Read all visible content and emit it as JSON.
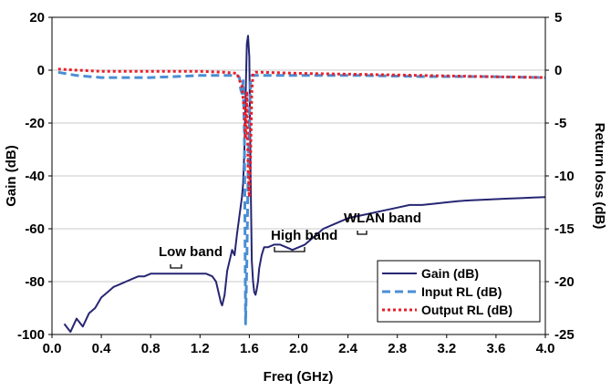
{
  "chart_data": {
    "type": "line",
    "xlabel": "Freq (GHz)",
    "ylabel": "Gain (dB)",
    "y2label": "Return loss (dB)",
    "xlim": [
      0.0,
      4.0
    ],
    "ylim": [
      -100,
      20
    ],
    "y2lim": [
      -25,
      5
    ],
    "x_ticks": [
      "0.0",
      "0.4",
      "0.8",
      "1.2",
      "1.6",
      "2.0",
      "2.4",
      "2.8",
      "3.2",
      "3.6",
      "4.0"
    ],
    "y_ticks": [
      "20",
      "0",
      "-20",
      "-40",
      "-60",
      "-80",
      "-100"
    ],
    "y2_ticks": [
      "5",
      "0",
      "-5",
      "-10",
      "-15",
      "-20",
      "-25"
    ],
    "grid": true,
    "legend_position": "bottom-right",
    "series": [
      {
        "name": "Gain (dB)",
        "axis": "left",
        "color": "#262673",
        "style": "solid",
        "x": [
          0.1,
          0.15,
          0.2,
          0.25,
          0.3,
          0.35,
          0.4,
          0.45,
          0.5,
          0.55,
          0.6,
          0.65,
          0.7,
          0.75,
          0.8,
          0.85,
          0.9,
          0.95,
          1.0,
          1.05,
          1.1,
          1.15,
          1.2,
          1.25,
          1.3,
          1.33,
          1.35,
          1.37,
          1.38,
          1.4,
          1.42,
          1.44,
          1.46,
          1.48,
          1.5,
          1.52,
          1.54,
          1.55,
          1.56,
          1.57,
          1.58,
          1.59,
          1.6,
          1.61,
          1.62,
          1.63,
          1.64,
          1.65,
          1.66,
          1.67,
          1.68,
          1.7,
          1.72,
          1.75,
          1.8,
          1.85,
          1.9,
          1.95,
          2.0,
          2.05,
          2.1,
          2.15,
          2.2,
          2.3,
          2.4,
          2.5,
          2.6,
          2.7,
          2.8,
          2.9,
          3.0,
          3.1,
          3.2,
          3.3,
          3.4,
          3.5,
          3.6,
          3.7,
          3.8,
          3.9,
          4.0
        ],
        "values": [
          -96,
          -99,
          -94,
          -97,
          -92,
          -90,
          -86,
          -84,
          -82,
          -81,
          -80,
          -79,
          -78,
          -78,
          -77,
          -77,
          -77,
          -77,
          -77,
          -77,
          -77,
          -77,
          -77,
          -77,
          -78,
          -80,
          -84,
          -88,
          -89,
          -85,
          -76,
          -72,
          -68,
          -70,
          -62,
          -55,
          -48,
          -43,
          -30,
          -10,
          10,
          13,
          5,
          -40,
          -72,
          -80,
          -84,
          -85,
          -83,
          -80,
          -75,
          -70,
          -67,
          -67,
          -66,
          -66,
          -67,
          -68,
          -67,
          -66,
          -64,
          -62,
          -60,
          -58,
          -56,
          -55,
          -54,
          -53,
          -52,
          -51,
          -51,
          -50.5,
          -50,
          -49.5,
          -49.2,
          -49,
          -48.8,
          -48.6,
          -48.4,
          -48.2,
          -48
        ]
      },
      {
        "name": "Input RL (dB)",
        "axis": "right",
        "color": "#4a8ed4",
        "style": "dashed",
        "x": [
          0.05,
          0.2,
          0.4,
          0.6,
          0.8,
          1.0,
          1.2,
          1.4,
          1.5,
          1.52,
          1.53,
          1.54,
          1.55,
          1.56,
          1.57,
          1.58,
          1.59,
          1.6,
          1.61,
          1.62,
          1.63,
          1.65,
          1.7,
          2.0,
          2.5,
          3.0,
          3.5,
          4.0
        ],
        "values": [
          -0.2,
          -0.5,
          -0.7,
          -0.7,
          -0.7,
          -0.6,
          -0.5,
          -0.5,
          -0.5,
          -0.7,
          -1.8,
          -2.2,
          -1.0,
          -6.0,
          -24.0,
          -18.0,
          -10.0,
          -5.0,
          -1.0,
          -0.5,
          -0.5,
          -0.5,
          -0.5,
          -0.5,
          -0.5,
          -0.6,
          -0.6,
          -0.7
        ]
      },
      {
        "name": "Output RL (dB)",
        "axis": "right",
        "color": "#e8202a",
        "style": "dotted",
        "x": [
          0.05,
          0.2,
          0.4,
          0.6,
          0.8,
          1.0,
          1.2,
          1.4,
          1.5,
          1.54,
          1.56,
          1.57,
          1.58,
          1.59,
          1.6,
          1.61,
          1.62,
          1.63,
          1.65,
          1.7,
          2.0,
          2.5,
          3.0,
          3.5,
          4.0
        ],
        "values": [
          0.1,
          0.0,
          -0.1,
          -0.1,
          -0.1,
          -0.1,
          -0.1,
          -0.2,
          -0.3,
          -1.5,
          -4.0,
          -6.5,
          -2.0,
          -9.0,
          -12.0,
          -8.0,
          -2.0,
          -0.3,
          -0.2,
          -0.2,
          -0.3,
          -0.4,
          -0.5,
          -0.6,
          -0.7
        ]
      }
    ],
    "annotations": [
      "Low band",
      "High band",
      "WLAN band"
    ]
  }
}
